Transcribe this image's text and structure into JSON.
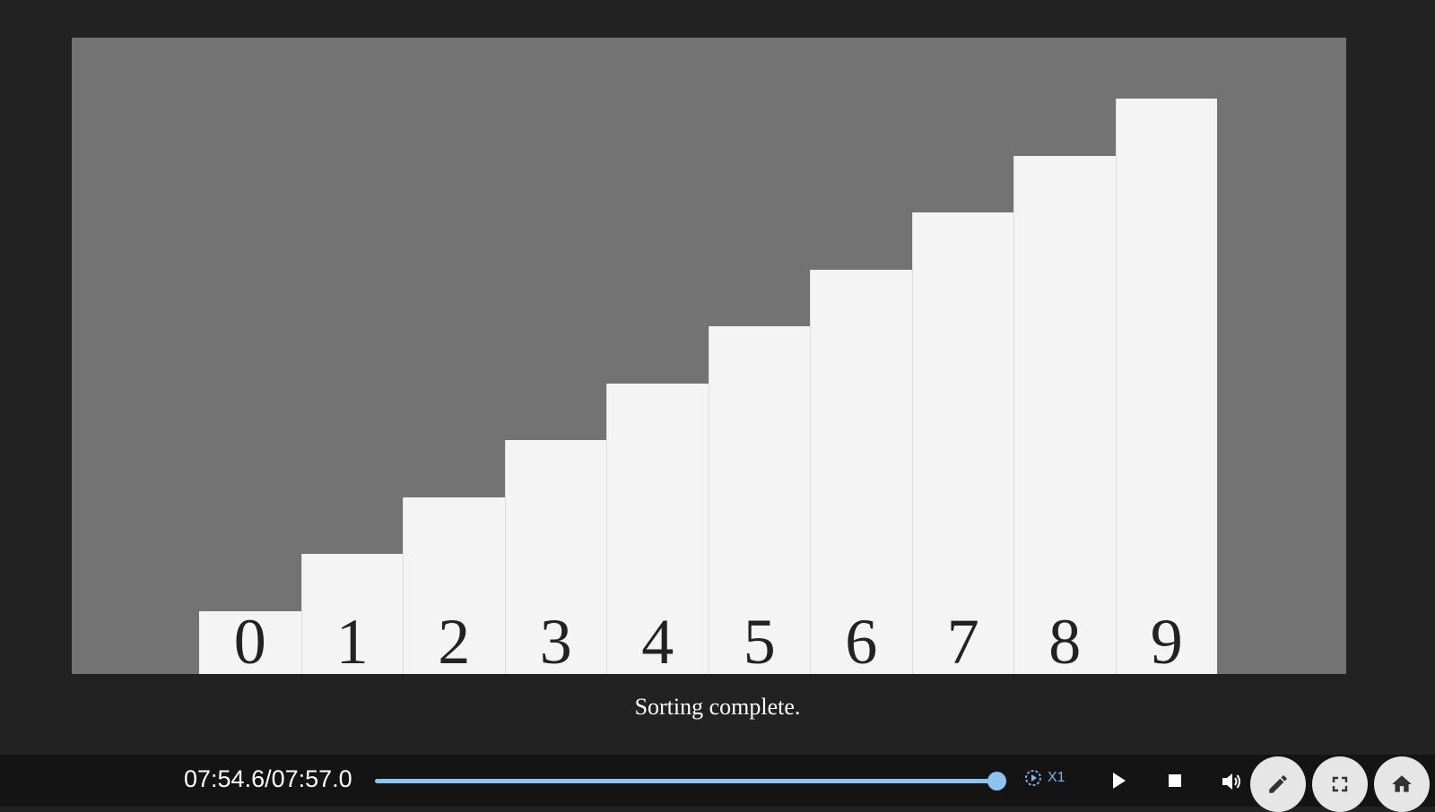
{
  "visualization": {
    "bars": [
      {
        "label": "0",
        "value": 1
      },
      {
        "label": "1",
        "value": 2
      },
      {
        "label": "2",
        "value": 3
      },
      {
        "label": "3",
        "value": 4
      },
      {
        "label": "4",
        "value": 5
      },
      {
        "label": "5",
        "value": 6
      },
      {
        "label": "6",
        "value": 7
      },
      {
        "label": "7",
        "value": 8
      },
      {
        "label": "8",
        "value": 9
      },
      {
        "label": "9",
        "value": 10
      }
    ],
    "caption": "Sorting complete."
  },
  "player": {
    "time_display": "07:54.6/07:57.0",
    "progress": 0.995,
    "speed_label": "X1"
  },
  "colors": {
    "background": "#222222",
    "stage": "#737373",
    "bar": "#f4f4f4",
    "accent": "#8ec3ef"
  },
  "icons": {
    "speed": "playback-speed-icon",
    "play": "play-icon",
    "stop": "stop-icon",
    "volume": "volume-icon",
    "edit": "pencil-icon",
    "fullscreen": "fullscreen-icon",
    "home": "home-icon"
  }
}
